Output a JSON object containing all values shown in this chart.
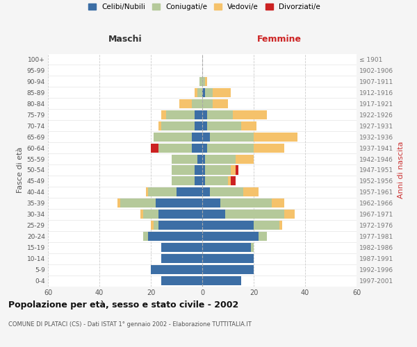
{
  "age_groups": [
    "0-4",
    "5-9",
    "10-14",
    "15-19",
    "20-24",
    "25-29",
    "30-34",
    "35-39",
    "40-44",
    "45-49",
    "50-54",
    "55-59",
    "60-64",
    "65-69",
    "70-74",
    "75-79",
    "80-84",
    "85-89",
    "90-94",
    "95-99",
    "100+"
  ],
  "birth_years": [
    "1997-2001",
    "1992-1996",
    "1987-1991",
    "1982-1986",
    "1977-1981",
    "1972-1976",
    "1967-1971",
    "1962-1966",
    "1957-1961",
    "1952-1956",
    "1947-1951",
    "1942-1946",
    "1937-1941",
    "1932-1936",
    "1927-1931",
    "1922-1926",
    "1917-1921",
    "1912-1916",
    "1907-1911",
    "1902-1906",
    "≤ 1901"
  ],
  "maschi": {
    "celibi": [
      16,
      20,
      16,
      16,
      21,
      17,
      17,
      18,
      10,
      3,
      3,
      2,
      4,
      4,
      3,
      3,
      0,
      0,
      0,
      0,
      0
    ],
    "coniugati": [
      0,
      0,
      0,
      0,
      2,
      2,
      6,
      14,
      11,
      9,
      9,
      10,
      13,
      15,
      13,
      11,
      4,
      2,
      1,
      0,
      0
    ],
    "vedovi": [
      0,
      0,
      0,
      0,
      0,
      1,
      1,
      1,
      1,
      0,
      0,
      0,
      0,
      0,
      1,
      2,
      5,
      1,
      0,
      0,
      0
    ],
    "divorziati": [
      0,
      0,
      0,
      0,
      0,
      0,
      0,
      0,
      0,
      0,
      0,
      0,
      3,
      0,
      0,
      0,
      0,
      0,
      0,
      0,
      0
    ]
  },
  "femmine": {
    "nubili": [
      15,
      20,
      20,
      19,
      22,
      20,
      9,
      7,
      3,
      1,
      1,
      1,
      2,
      3,
      2,
      2,
      0,
      1,
      0,
      0,
      0
    ],
    "coniugate": [
      0,
      0,
      0,
      1,
      3,
      10,
      23,
      20,
      13,
      9,
      10,
      12,
      18,
      17,
      13,
      10,
      4,
      3,
      1,
      0,
      0
    ],
    "vedove": [
      0,
      0,
      0,
      0,
      0,
      1,
      4,
      5,
      6,
      1,
      2,
      7,
      12,
      17,
      6,
      13,
      6,
      7,
      1,
      0,
      0
    ],
    "divorziate": [
      0,
      0,
      0,
      0,
      0,
      0,
      0,
      0,
      0,
      2,
      1,
      0,
      0,
      0,
      0,
      0,
      0,
      0,
      0,
      0,
      0
    ]
  },
  "colors": {
    "celibi": "#3c6ea5",
    "coniugati": "#b5c99a",
    "vedovi": "#f5c26b",
    "divorziati": "#cc2222"
  },
  "xlim": 60,
  "title": "Popolazione per età, sesso e stato civile - 2002",
  "subtitle": "COMUNE DI PLATACI (CS) - Dati ISTAT 1° gennaio 2002 - Elaborazione TUTTITALIA.IT",
  "xlabel_left": "Maschi",
  "xlabel_right": "Femmine",
  "ylabel_left": "Fasce di età",
  "ylabel_right": "Anni di nascita",
  "legend_labels": [
    "Celibi/Nubili",
    "Coniugati/e",
    "Vedovi/e",
    "Divorziati/e"
  ],
  "bg_color": "#f5f5f5",
  "plot_bg": "#ffffff",
  "grid_color": "#cccccc"
}
